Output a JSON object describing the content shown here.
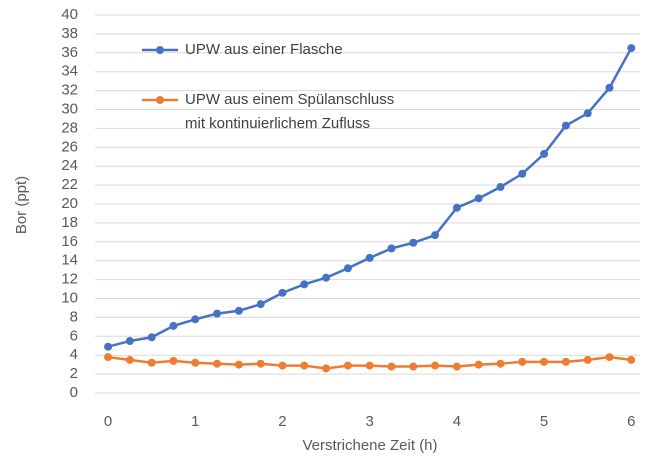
{
  "chart_data": {
    "type": "line",
    "x": [
      0,
      0.25,
      0.5,
      0.75,
      1,
      1.25,
      1.5,
      1.75,
      2,
      2.25,
      2.5,
      2.75,
      3,
      3.25,
      3.5,
      3.75,
      4,
      4.25,
      4.5,
      4.75,
      5,
      5.25,
      5.5,
      5.75,
      6
    ],
    "series": [
      {
        "name": "UPW aus einer Flasche",
        "color": "#4472c4",
        "values": [
          4.9,
          5.5,
          5.9,
          7.1,
          7.8,
          8.4,
          8.7,
          9.4,
          10.6,
          11.5,
          12.2,
          13.2,
          14.3,
          15.3,
          15.9,
          16.7,
          19.6,
          20.6,
          21.8,
          23.2,
          25.3,
          28.3,
          29.6,
          32.3,
          36.5
        ]
      },
      {
        "name": "UPW aus einem Spülanschluss\nmit kontinuierlichem Zufluss",
        "color": "#ed7d31",
        "values": [
          3.8,
          3.5,
          3.2,
          3.4,
          3.2,
          3.1,
          3.0,
          3.1,
          2.9,
          2.9,
          2.6,
          2.9,
          2.9,
          2.8,
          2.8,
          2.9,
          2.8,
          3.0,
          3.1,
          3.3,
          3.3,
          3.3,
          3.5,
          3.8,
          3.5
        ]
      }
    ],
    "xlabel": "Verstrichene Zeit (h)",
    "ylabel": "Bor (ppt)",
    "xlim": [
      -0.15,
      6.1
    ],
    "xticks": [
      0,
      1,
      2,
      3,
      4,
      5,
      6
    ],
    "ylim": [
      0,
      40
    ],
    "yticks": [
      0,
      2,
      4,
      6,
      8,
      10,
      12,
      14,
      16,
      18,
      20,
      22,
      24,
      26,
      28,
      30,
      32,
      34,
      36,
      38,
      40
    ],
    "grid": true,
    "legend": "upper left"
  }
}
